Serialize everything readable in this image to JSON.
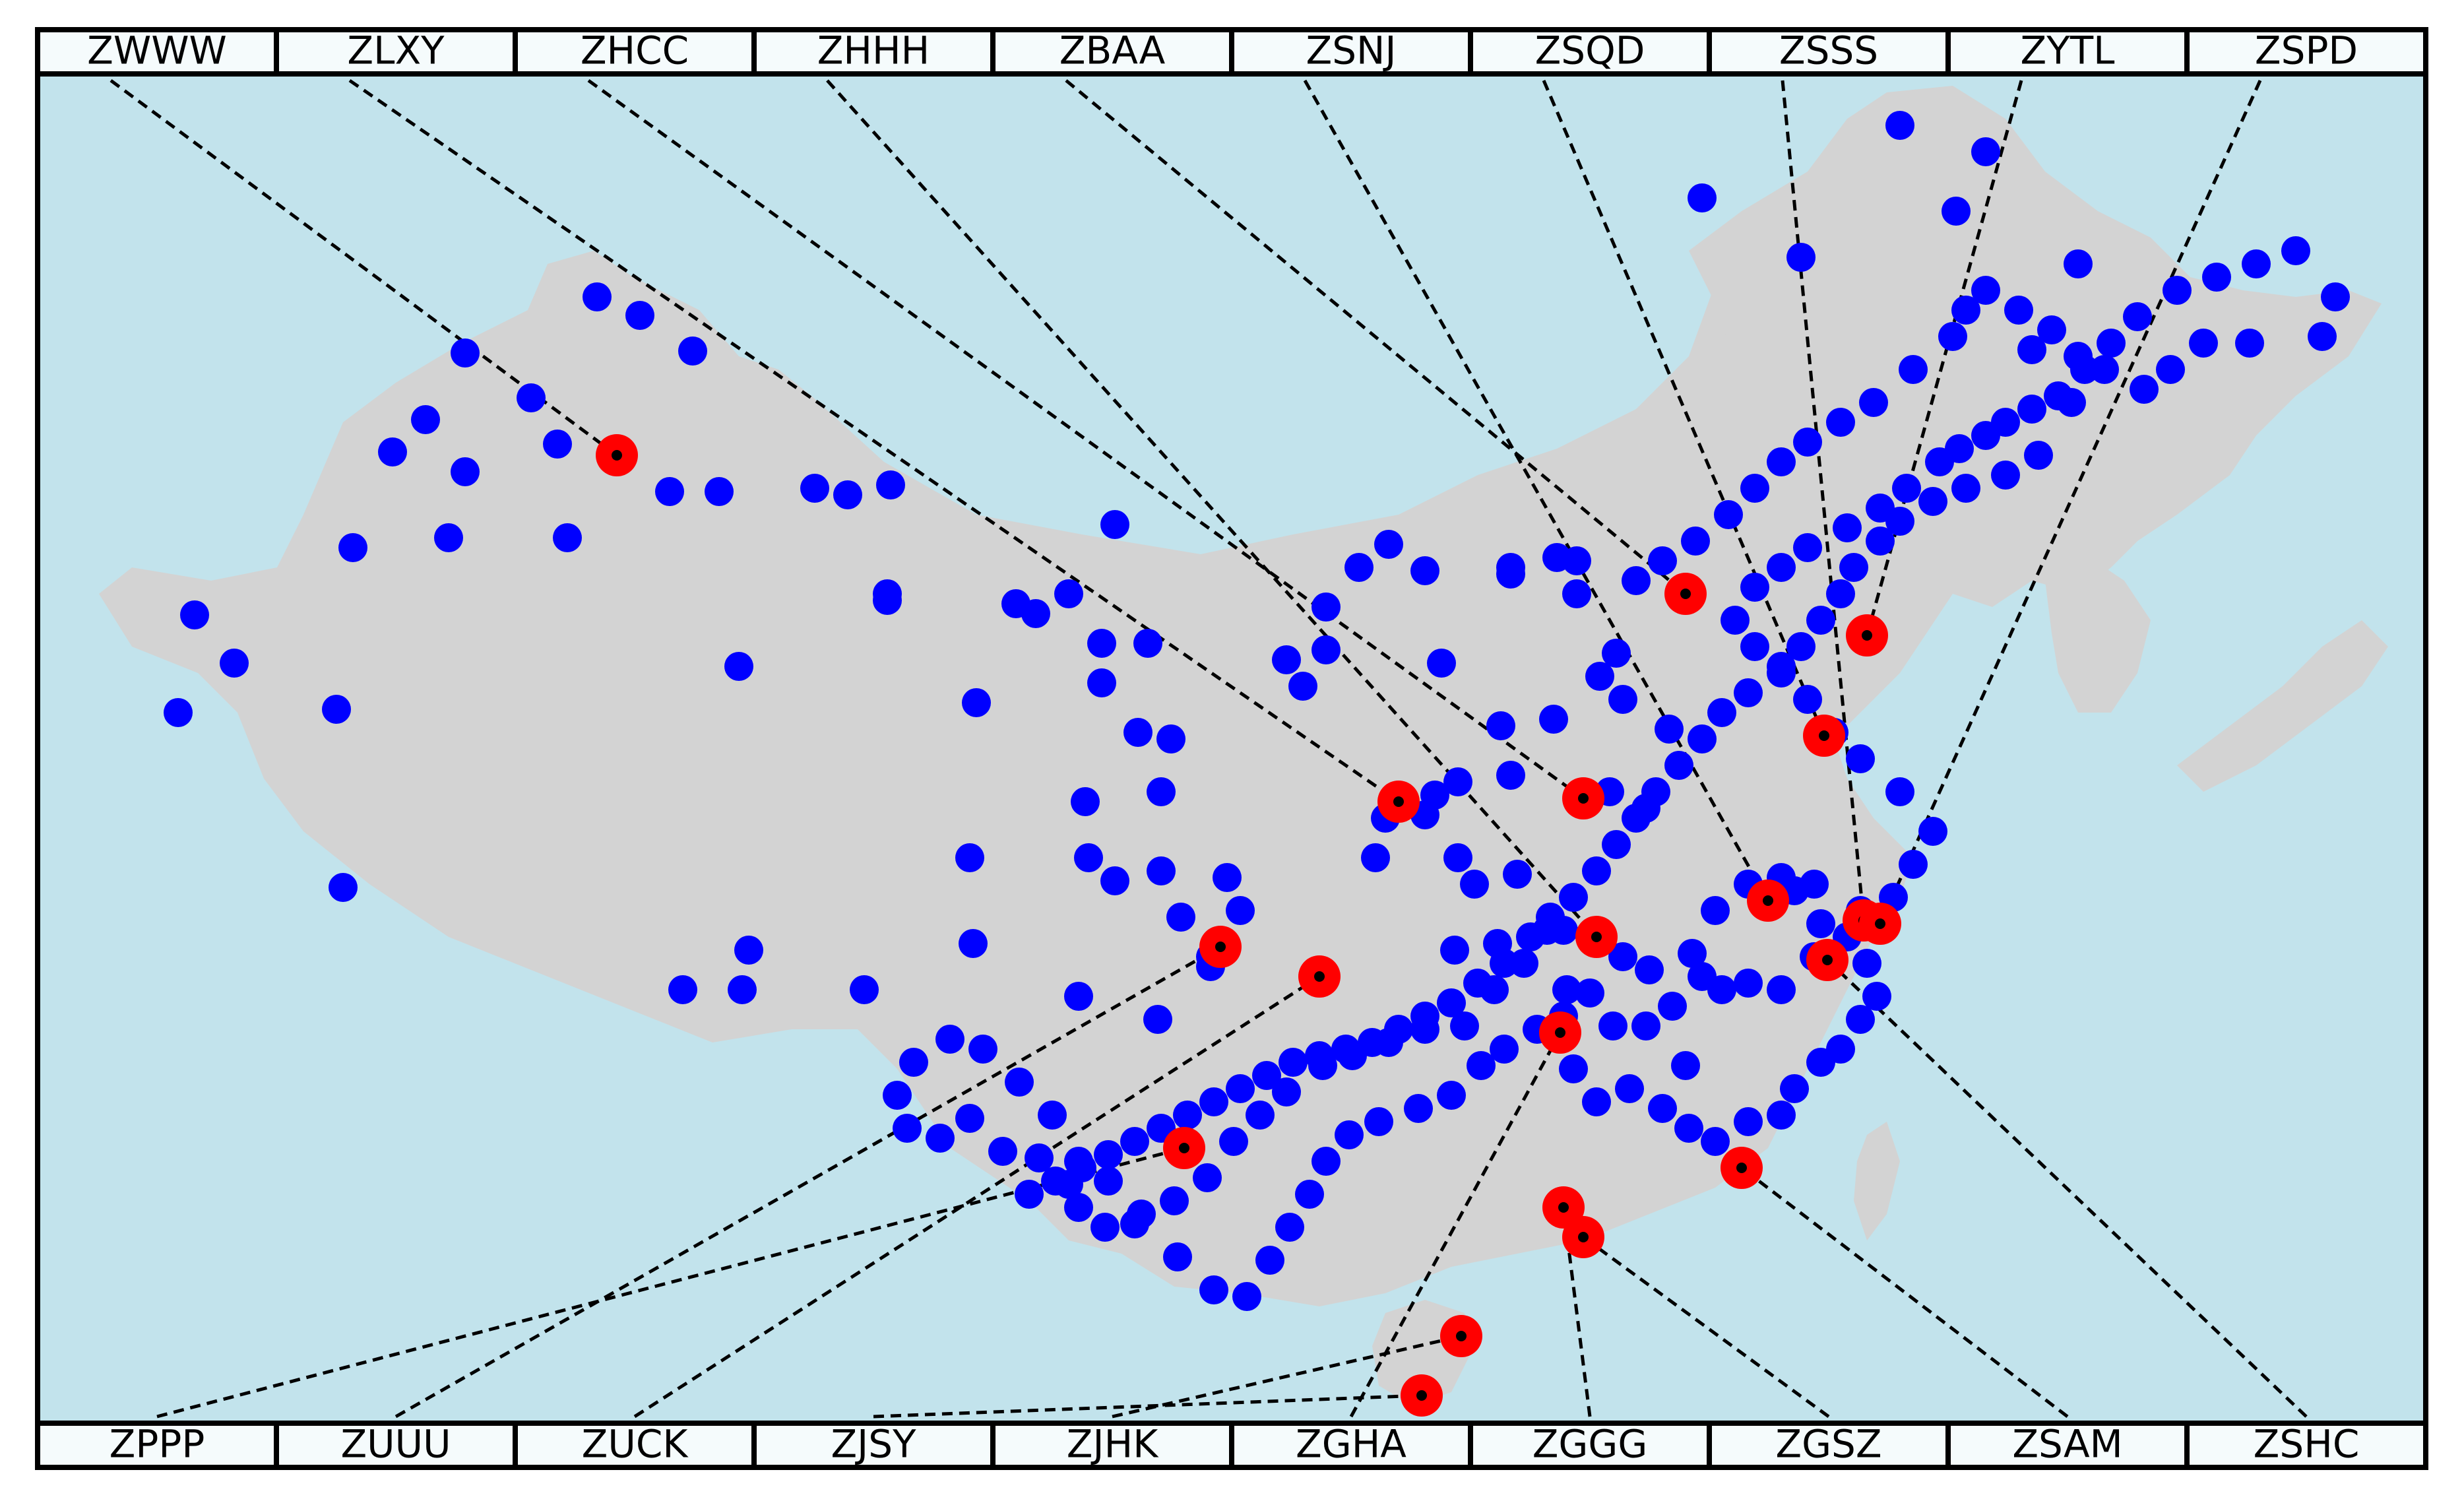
{
  "colors": {
    "sea": "#c2e3ec",
    "land": "#d3d3d3",
    "airport_dot": "#0000ff",
    "hub_ring": "#ff0000",
    "hub_center": "#000000",
    "leader_line": "#000000",
    "label_box": "#f5fbfc"
  },
  "labels_top": [
    "ZWWW",
    "ZLXY",
    "ZHCC",
    "ZHHH",
    "ZBAA",
    "ZSNJ",
    "ZSQD",
    "ZSSS",
    "ZYTL",
    "ZSPD"
  ],
  "labels_bottom": [
    "ZPPP",
    "ZUUU",
    "ZUCK",
    "ZJSY",
    "ZJHK",
    "ZGHA",
    "ZGGG",
    "ZGSZ",
    "ZSAM",
    "ZSHC"
  ]
}
